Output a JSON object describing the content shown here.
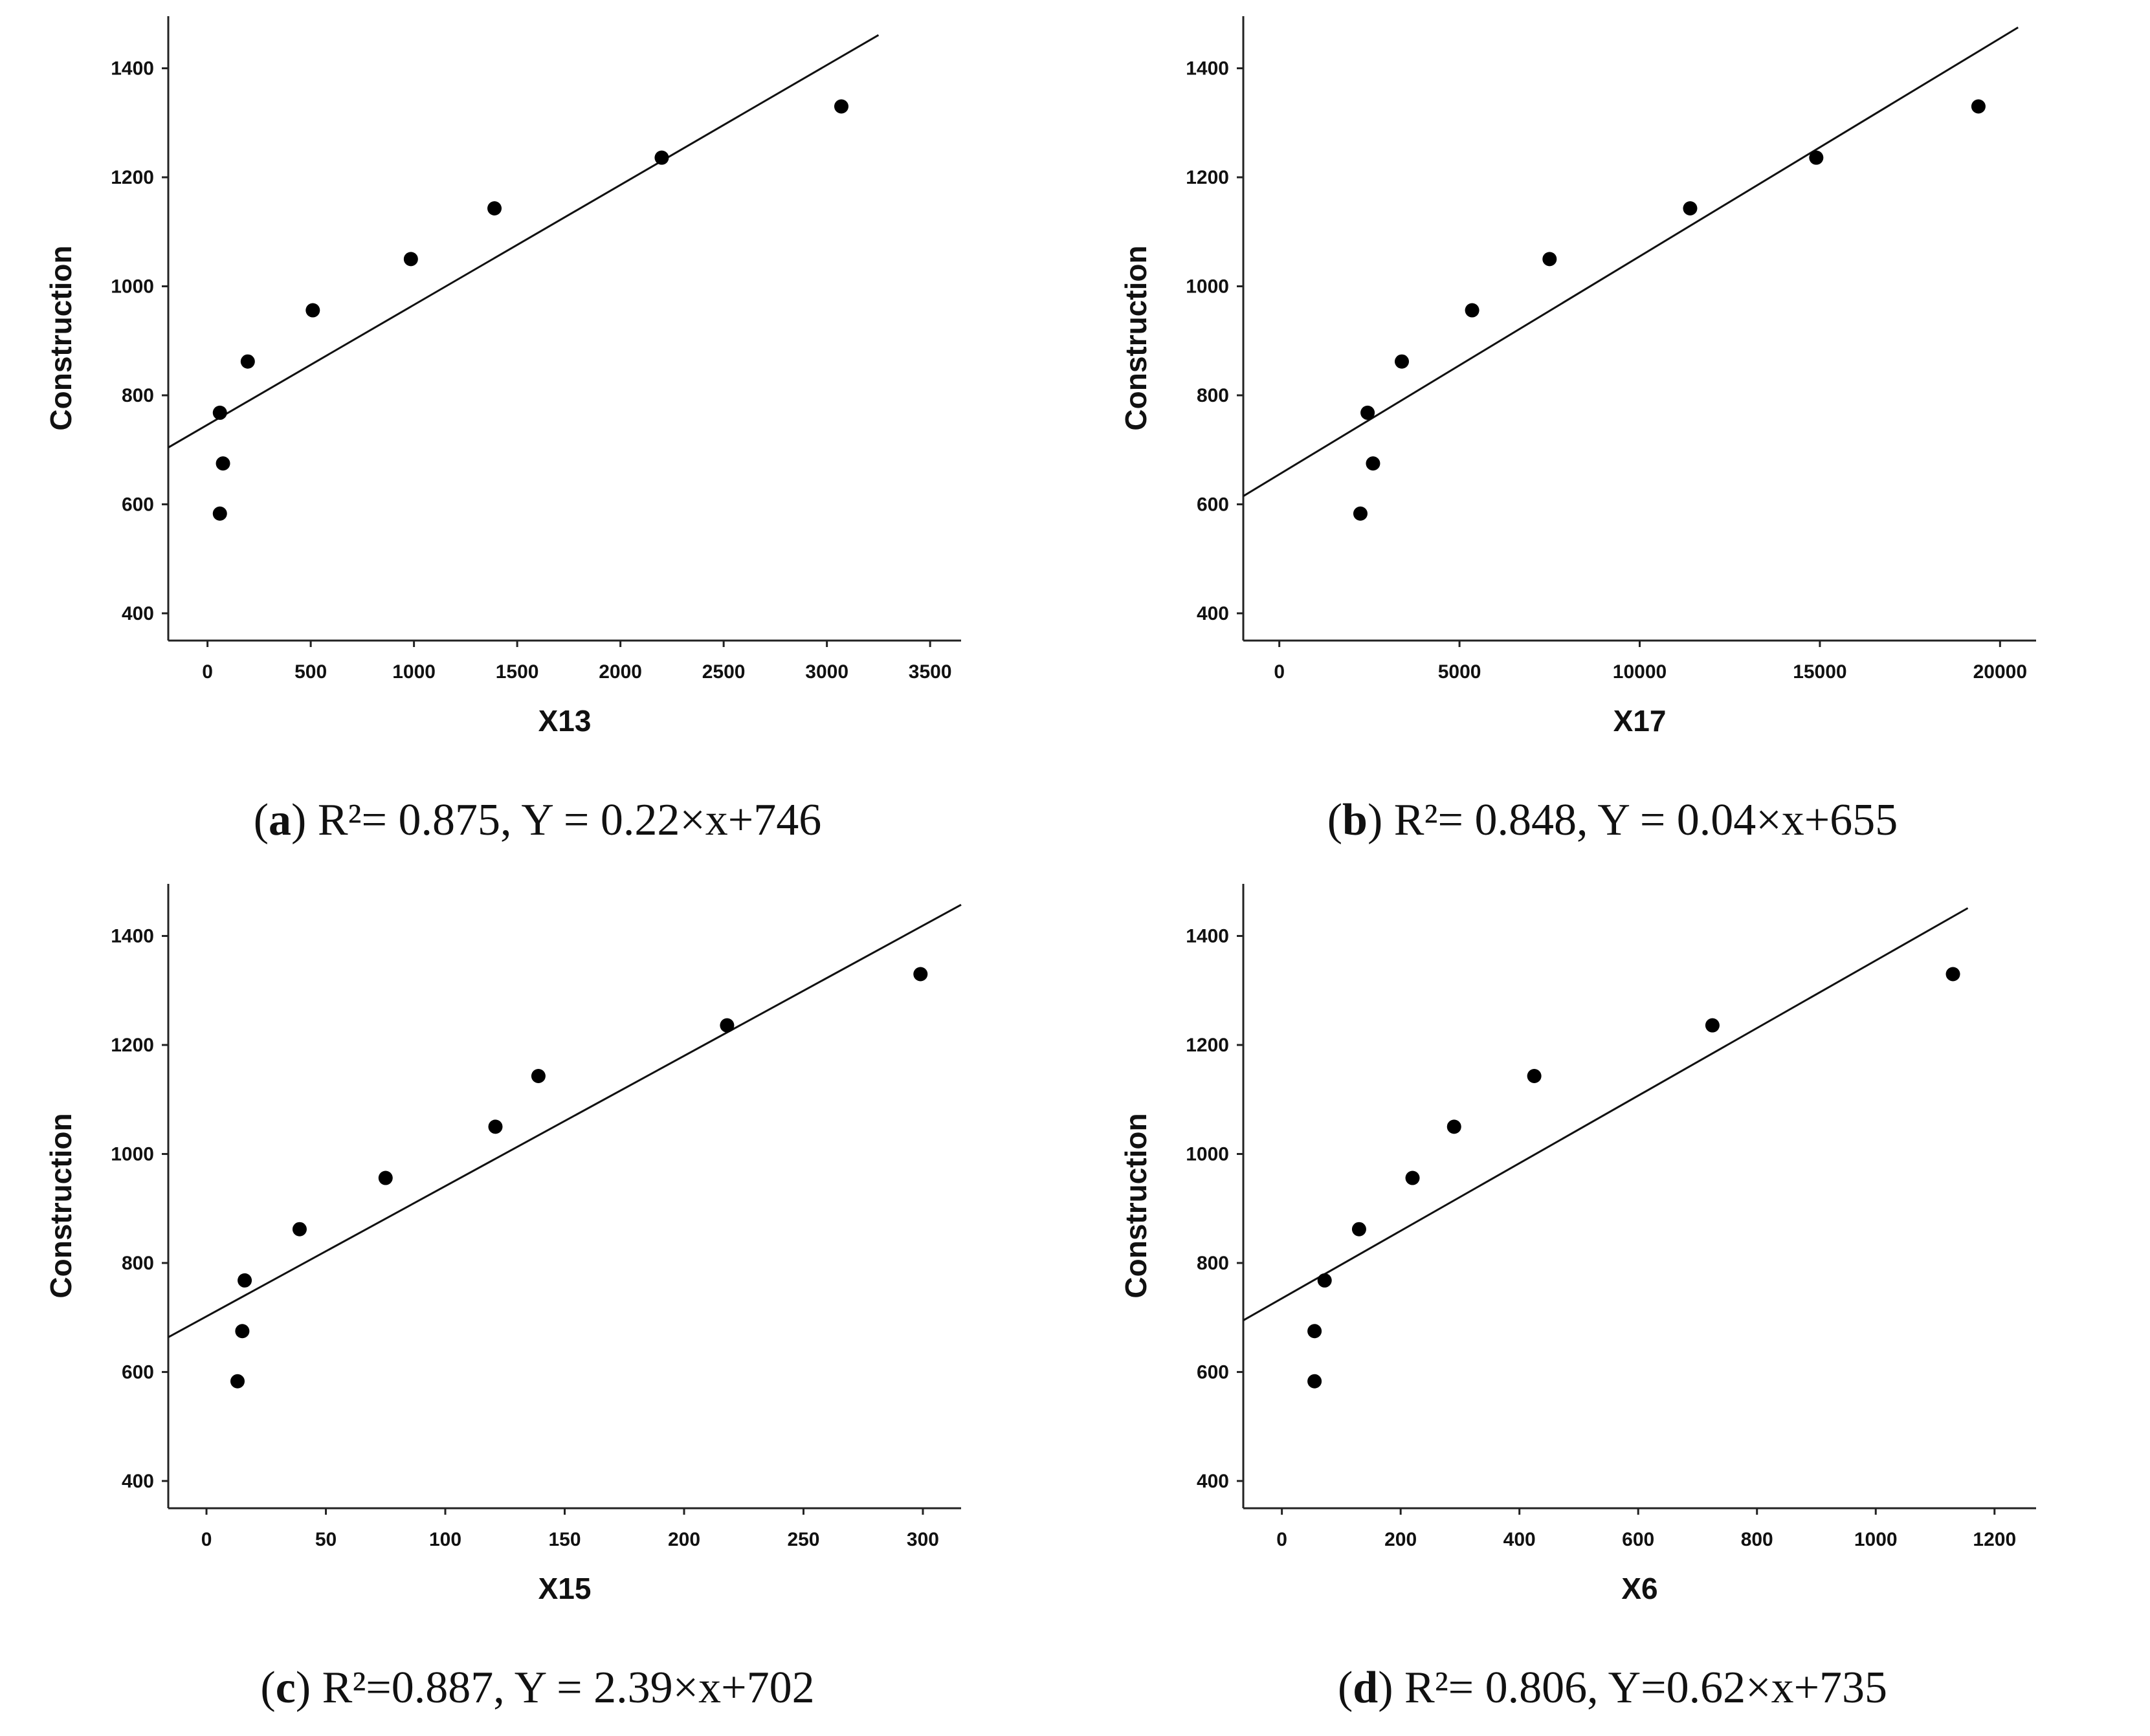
{
  "chart_data": [
    {
      "id": "a",
      "type": "scatter",
      "xlabel": "X13",
      "ylabel": "Construction",
      "xlim": [
        -190,
        3650
      ],
      "ylim": [
        350,
        1460
      ],
      "xticks": [
        0,
        500,
        1000,
        1500,
        2000,
        2500,
        3000,
        3500
      ],
      "xtick_labels": [
        "0",
        "500",
        "1000",
        "1500",
        "2000",
        "2500",
        "3000",
        "3500"
      ],
      "yticks": [
        400,
        600,
        800,
        1000,
        1200,
        1400
      ],
      "ytick_labels": [
        "400",
        "600",
        "800",
        "1000",
        "1200",
        "1400"
      ],
      "points": [
        [
          60,
          583
        ],
        [
          75,
          675
        ],
        [
          60,
          768
        ],
        [
          195,
          862
        ],
        [
          510,
          956
        ],
        [
          985,
          1050
        ],
        [
          1390,
          1143
        ],
        [
          2200,
          1236
        ],
        [
          3070,
          1330
        ]
      ],
      "fit": {
        "slope": 0.22,
        "intercept": 746,
        "x_range": [
          -190,
          3250
        ]
      },
      "caption": {
        "label": "a",
        "r2_text": "R²= 0.875",
        "eq_text": "Y = 0.22×x+746"
      }
    },
    {
      "id": "b",
      "type": "scatter",
      "xlabel": "X17",
      "ylabel": "Construction",
      "xlim": [
        -1000,
        21000
      ],
      "ylim": [
        350,
        1460
      ],
      "xticks": [
        0,
        5000,
        10000,
        15000,
        20000
      ],
      "xtick_labels": [
        "0",
        "5000",
        "10000",
        "15000",
        "20000"
      ],
      "yticks": [
        400,
        600,
        800,
        1000,
        1200,
        1400
      ],
      "ytick_labels": [
        "400",
        "600",
        "800",
        "1000",
        "1200",
        "1400"
      ],
      "points": [
        [
          2250,
          583
        ],
        [
          2600,
          675
        ],
        [
          2450,
          768
        ],
        [
          3400,
          862
        ],
        [
          5350,
          956
        ],
        [
          7500,
          1050
        ],
        [
          11400,
          1143
        ],
        [
          14900,
          1236
        ],
        [
          19400,
          1330
        ]
      ],
      "fit": {
        "slope": 0.04,
        "intercept": 655,
        "x_range": [
          -1000,
          20500
        ]
      },
      "caption": {
        "label": "b",
        "r2_text": "R²= 0.848",
        "eq_text": "Y = 0.04×x+655"
      }
    },
    {
      "id": "c",
      "type": "scatter",
      "xlabel": "X15",
      "ylabel": "Construction",
      "xlim": [
        -16,
        316
      ],
      "ylim": [
        350,
        1460
      ],
      "xticks": [
        0,
        50,
        100,
        150,
        200,
        250,
        300
      ],
      "xtick_labels": [
        "0",
        "50",
        "100",
        "150",
        "200",
        "250",
        "300"
      ],
      "yticks": [
        400,
        600,
        800,
        1000,
        1200,
        1400
      ],
      "ytick_labels": [
        "400",
        "600",
        "800",
        "1000",
        "1200",
        "1400"
      ],
      "points": [
        [
          13,
          583
        ],
        [
          15,
          675
        ],
        [
          16,
          768
        ],
        [
          39,
          862
        ],
        [
          75,
          956
        ],
        [
          121,
          1050
        ],
        [
          139,
          1143
        ],
        [
          218,
          1236
        ],
        [
          299,
          1330
        ]
      ],
      "fit": {
        "slope": 2.39,
        "intercept": 702,
        "x_range": [
          -16,
          316
        ]
      },
      "caption": {
        "label": "c",
        "r2_text": "R²=0.887",
        "eq_text": "Y = 2.39×x+702"
      }
    },
    {
      "id": "d",
      "type": "scatter",
      "xlabel": "X6",
      "ylabel": "Construction",
      "xlim": [
        -65,
        1270
      ],
      "ylim": [
        350,
        1460
      ],
      "xticks": [
        0,
        200,
        400,
        600,
        800,
        1000,
        1200
      ],
      "xtick_labels": [
        "0",
        "200",
        "400",
        "600",
        "800",
        "1000",
        "1200"
      ],
      "yticks": [
        400,
        600,
        800,
        1000,
        1200,
        1400
      ],
      "ytick_labels": [
        "400",
        "600",
        "800",
        "1000",
        "1200",
        "1400"
      ],
      "points": [
        [
          55,
          583
        ],
        [
          55,
          675
        ],
        [
          72,
          768
        ],
        [
          130,
          862
        ],
        [
          220,
          956
        ],
        [
          290,
          1050
        ],
        [
          425,
          1143
        ],
        [
          725,
          1236
        ],
        [
          1130,
          1330
        ]
      ],
      "fit": {
        "slope": 0.62,
        "intercept": 735,
        "x_range": [
          -65,
          1155
        ]
      },
      "caption": {
        "label": "d",
        "r2_text": "R²= 0.806",
        "eq_text": "Y=0.62×x+735"
      }
    }
  ]
}
